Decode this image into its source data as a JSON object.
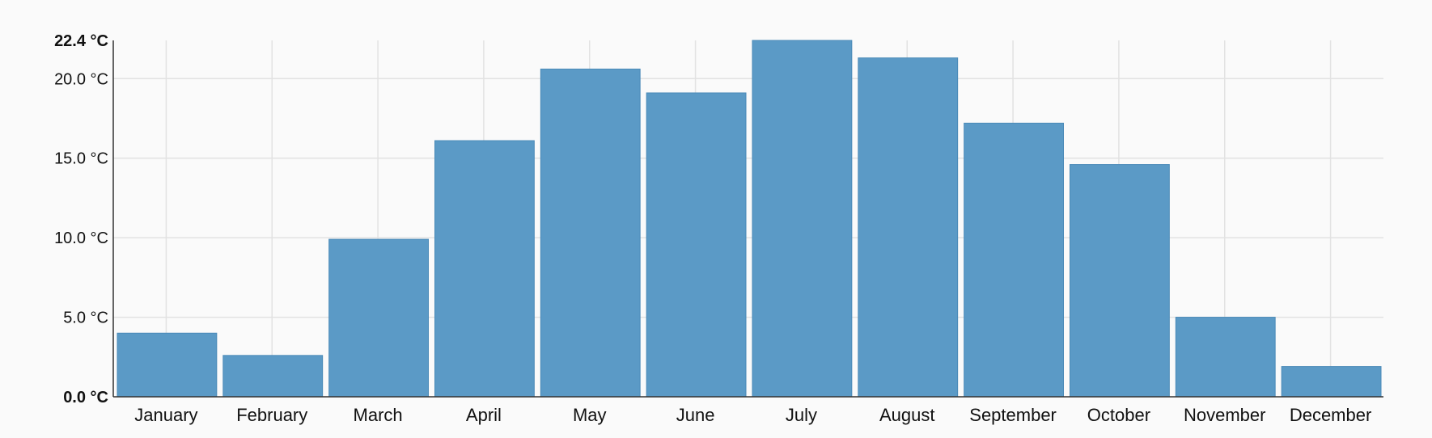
{
  "chart_data": {
    "type": "bar",
    "title": "",
    "xlabel": "",
    "ylabel": "",
    "unit": "°C",
    "categories": [
      "January",
      "February",
      "March",
      "April",
      "May",
      "June",
      "July",
      "August",
      "September",
      "October",
      "November",
      "December"
    ],
    "values": [
      4.0,
      2.6,
      9.9,
      16.1,
      20.6,
      19.1,
      22.4,
      21.3,
      17.2,
      14.6,
      5.0,
      1.9
    ],
    "ylim": [
      0,
      22.4
    ],
    "y_ticks": [
      {
        "value": 0,
        "label": "0.0 °C",
        "bold": true
      },
      {
        "value": 5,
        "label": "5.0 °C",
        "bold": false
      },
      {
        "value": 10,
        "label": "10.0 °C",
        "bold": false
      },
      {
        "value": 15,
        "label": "15.0 °C",
        "bold": false
      },
      {
        "value": 20,
        "label": "20.0 °C",
        "bold": false
      },
      {
        "value": 22.4,
        "label": "22.4 °C",
        "bold": true
      }
    ],
    "grid": true,
    "legend": "none",
    "bar_color": "#5b9ac6",
    "bar_edge_color": "#4a8ab8"
  }
}
